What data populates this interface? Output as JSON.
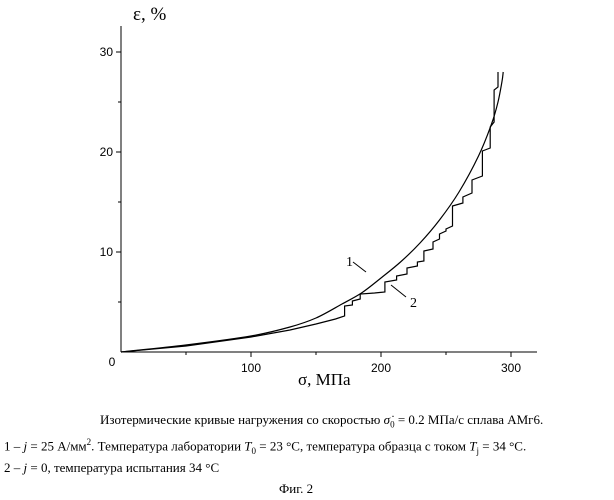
{
  "chart_data": {
    "type": "line",
    "ylabel": "ε, %",
    "xlabel": "σ, МПа",
    "xlim": [
      0,
      320
    ],
    "ylim": [
      0,
      32
    ],
    "x_ticks": [
      {
        "value": 0,
        "label": "0"
      },
      {
        "value": 100,
        "label": "100"
      },
      {
        "value": 200,
        "label": "200"
      },
      {
        "value": 300,
        "label": "300"
      }
    ],
    "y_ticks": [
      {
        "value": 0,
        "label": ""
      },
      {
        "value": 10,
        "label": "10"
      },
      {
        "value": 20,
        "label": "20"
      },
      {
        "value": 30,
        "label": "30"
      }
    ],
    "grid": false,
    "series": [
      {
        "name": "1",
        "style": "smooth",
        "points": [
          [
            0,
            0
          ],
          [
            50,
            0.7
          ],
          [
            100,
            1.6
          ],
          [
            130,
            2.5
          ],
          [
            150,
            3.4
          ],
          [
            170,
            4.8
          ],
          [
            185,
            5.9
          ],
          [
            200,
            7.4
          ],
          [
            215,
            9.0
          ],
          [
            230,
            10.9
          ],
          [
            245,
            13.2
          ],
          [
            260,
            16.0
          ],
          [
            275,
            19.6
          ],
          [
            285,
            22.8
          ],
          [
            290,
            25.0
          ],
          [
            293,
            27.0
          ],
          [
            294,
            28.0
          ]
        ]
      },
      {
        "name": "2",
        "style": "stepped",
        "points": [
          [
            0,
            0
          ],
          [
            50,
            0.6
          ],
          [
            100,
            1.5
          ],
          [
            130,
            2.2
          ],
          [
            150,
            2.8
          ],
          [
            165,
            3.3
          ],
          [
            172,
            3.6
          ],
          [
            172,
            4.6
          ],
          [
            178,
            4.7
          ],
          [
            178,
            5.1
          ],
          [
            184,
            5.3
          ],
          [
            184,
            5.8
          ],
          [
            195,
            5.9
          ],
          [
            203,
            6.0
          ],
          [
            203,
            7.0
          ],
          [
            212,
            7.2
          ],
          [
            212,
            7.6
          ],
          [
            220,
            7.8
          ],
          [
            220,
            8.4
          ],
          [
            228,
            8.6
          ],
          [
            228,
            9.0
          ],
          [
            233,
            9.1
          ],
          [
            233,
            10.1
          ],
          [
            240,
            10.3
          ],
          [
            240,
            11.0
          ],
          [
            245,
            11.3
          ],
          [
            245,
            11.8
          ],
          [
            250,
            12.1
          ],
          [
            250,
            12.3
          ],
          [
            255,
            12.6
          ],
          [
            255,
            14.6
          ],
          [
            263,
            14.9
          ],
          [
            263,
            15.5
          ],
          [
            270,
            15.9
          ],
          [
            270,
            17.2
          ],
          [
            278,
            17.6
          ],
          [
            278,
            20.1
          ],
          [
            284,
            20.4
          ],
          [
            284,
            22.5
          ],
          [
            287,
            23.0
          ],
          [
            287,
            26.2
          ],
          [
            290,
            26.5
          ],
          [
            290,
            28.0
          ]
        ]
      }
    ]
  },
  "annotations": {
    "label_1": "1",
    "label_2": "2"
  },
  "caption": {
    "line1_part1": "Изотермические кривые нагружения со скоростью ",
    "line1_symbol": "σ̇",
    "line1_symbol_sub": "0",
    "line1_part2": " = 0.2 МПа/с сплава АМг6.",
    "line2_part1": "1 – ",
    "line2_j": "j",
    "line2_part2": " = 25  А/мм",
    "line2_sup": "2",
    "line2_part3": ". Температура лаборатории ",
    "line2_T0": "T",
    "line2_T0_sub": "0",
    "line2_part4": " = 23 °С, температура образца с током ",
    "line2_Tj": "T",
    "line2_Tj_sub": "j",
    "line2_part5": " = 34 °С.",
    "line3_part1": "2 – ",
    "line3_j": "j",
    "line3_part2": " = 0, температура испытания 34 °С",
    "figure_label": "Фиг. 2"
  }
}
